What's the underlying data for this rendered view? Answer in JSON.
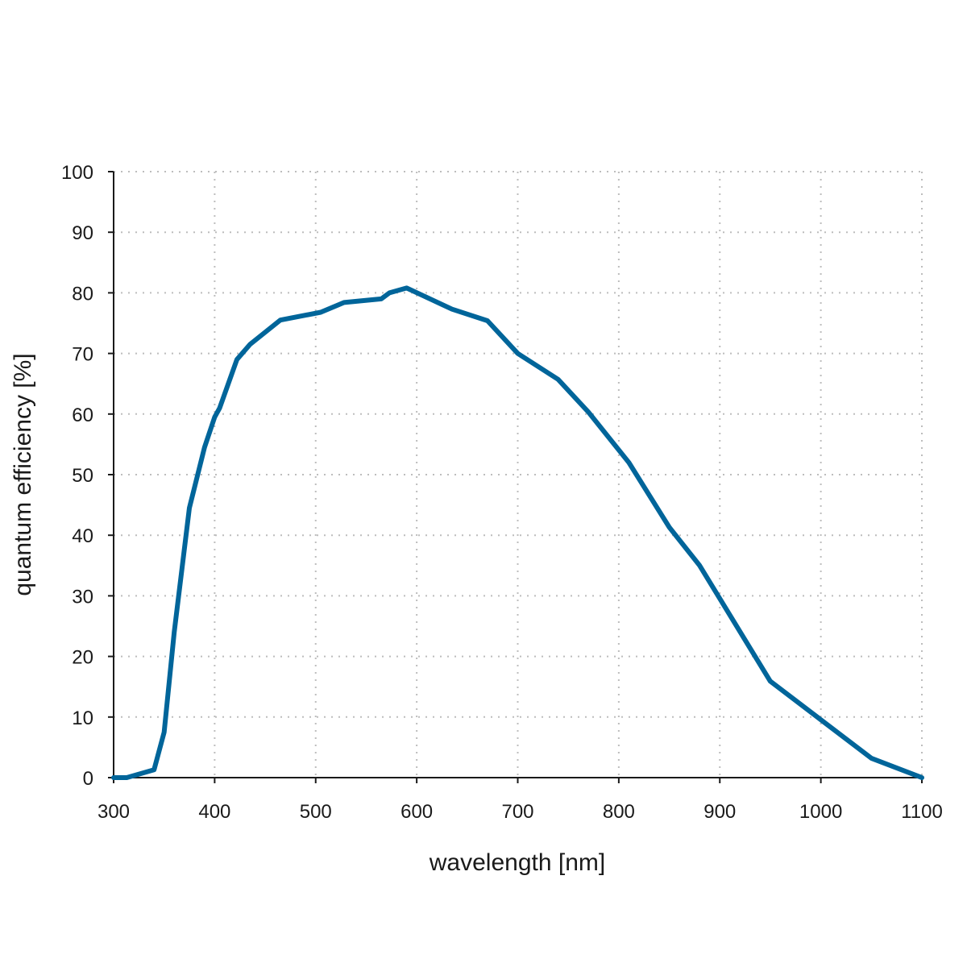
{
  "chart_data": {
    "type": "line",
    "title": "",
    "xlabel": "wavelength [nm]",
    "ylabel": "quantum efficiency [%]",
    "xlim": [
      300,
      1100
    ],
    "ylim": [
      0,
      100
    ],
    "xticks": [
      300,
      400,
      500,
      600,
      700,
      800,
      900,
      1000,
      1100
    ],
    "yticks": [
      0,
      10,
      20,
      30,
      40,
      50,
      60,
      70,
      80,
      90,
      100
    ],
    "grid": true,
    "series": [
      {
        "name": "quantum efficiency",
        "color": "#00659a",
        "x": [
          300,
          313,
          340,
          350,
          360,
          375,
          390,
          400,
          405,
          422,
          435,
          465,
          505,
          528,
          565,
          573,
          590,
          635,
          670,
          700,
          740,
          770,
          810,
          850,
          880,
          950,
          1050,
          1100
        ],
        "y": [
          0,
          0,
          1.3,
          7.5,
          24,
          44.5,
          54.5,
          59.5,
          61,
          69,
          71.5,
          75.5,
          76.8,
          78.4,
          79,
          80,
          80.8,
          77.3,
          75.4,
          70,
          65.7,
          60.3,
          52,
          41.3,
          35,
          15.9,
          3.2,
          0
        ]
      }
    ]
  }
}
